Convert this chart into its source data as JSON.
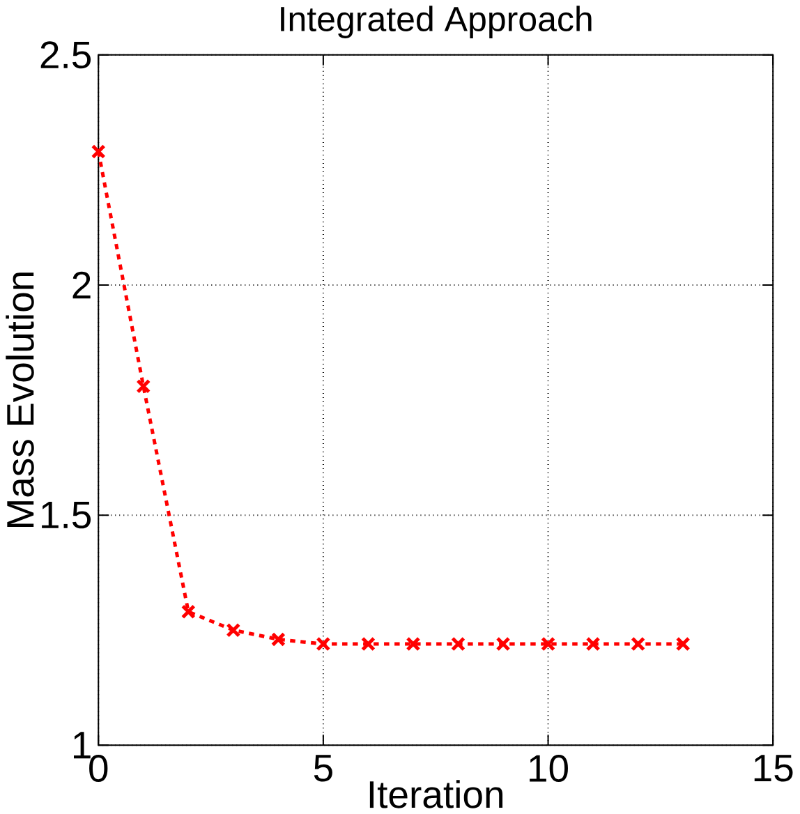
{
  "chart_data": {
    "type": "line",
    "title": "Integrated Approach",
    "xlabel": "Iteration",
    "ylabel": "Mass Evolution",
    "x": [
      0,
      1,
      2,
      3,
      4,
      5,
      6,
      7,
      8,
      9,
      10,
      11,
      12,
      13
    ],
    "series": [
      {
        "color": "#ff0000",
        "values": [
          2.29,
          1.78,
          1.29,
          1.25,
          1.23,
          1.22,
          1.22,
          1.22,
          1.22,
          1.22,
          1.22,
          1.22,
          1.22,
          1.22
        ]
      }
    ],
    "xlim": [
      0,
      15
    ],
    "ylim": [
      1,
      2.5
    ],
    "xticks": [
      0,
      5,
      10,
      15
    ],
    "yticks": [
      1,
      1.5,
      2,
      2.5
    ],
    "grid": true,
    "marker": "cross",
    "line_style": "dashed"
  }
}
